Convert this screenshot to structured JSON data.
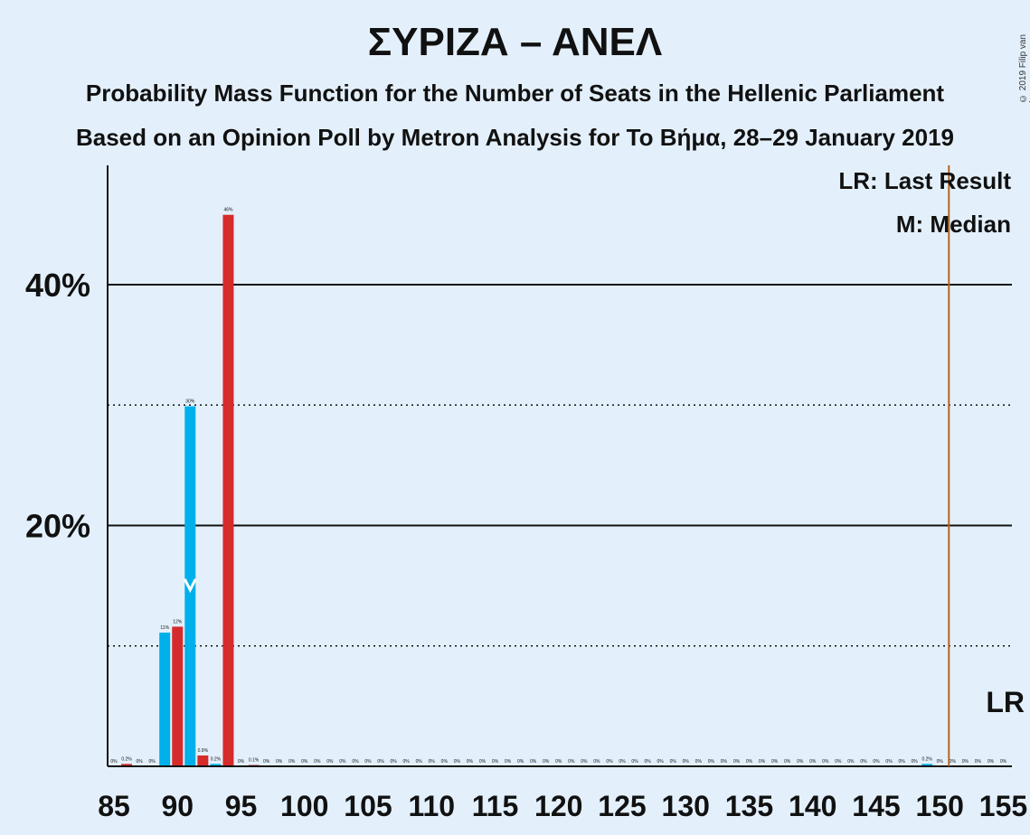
{
  "title": "ΣΥΡΙΖΑ – ΑΝΕΛ",
  "subtitle1": "Probability Mass Function for the Number of Seats in the Hellenic Parliament",
  "subtitle2": "Based on an Opinion Poll by Metron Analysis for To Βήμα, 28–29 January 2019",
  "copyright": "© 2019 Filip van Laenen",
  "legend": {
    "last_result": "LR: Last Result",
    "median": "M: Median",
    "lr_marker": "LR"
  },
  "colors": {
    "background": "#e3f0fc",
    "poll_bar": "#00b0ea",
    "last_result_bar": "#d62b2b",
    "last_result_line": "#b5651d",
    "median_marker": "#ffffff"
  },
  "chart_data": {
    "type": "bar",
    "x_label": "",
    "y_label": "",
    "x_range": [
      85,
      155
    ],
    "y_range": [
      0,
      50
    ],
    "x_ticks": [
      85,
      90,
      95,
      100,
      105,
      110,
      115,
      120,
      125,
      130,
      135,
      140,
      145,
      150,
      155
    ],
    "y_major_ticks": [
      {
        "value": 20,
        "label": "20%"
      },
      {
        "value": 40,
        "label": "40%"
      }
    ],
    "y_minor_gridlines": [
      10,
      30
    ],
    "last_result_seat": 151,
    "median_seat": 91,
    "series": [
      {
        "name": "poll",
        "bars": [
          {
            "seat": 85,
            "value": 0,
            "label": "0%"
          },
          {
            "seat": 87,
            "value": 0,
            "label": "0%"
          },
          {
            "seat": 89,
            "value": 11.1,
            "label": "11%"
          },
          {
            "seat": 91,
            "value": 29.9,
            "label": "30%"
          },
          {
            "seat": 93,
            "value": 0.2,
            "label": "0.2%"
          },
          {
            "seat": 95,
            "value": 0,
            "label": "0%"
          },
          {
            "seat": 97,
            "value": 0,
            "label": "0%"
          },
          {
            "seat": 99,
            "value": 0,
            "label": "0%"
          },
          {
            "seat": 101,
            "value": 0,
            "label": "0%"
          },
          {
            "seat": 103,
            "value": 0,
            "label": "0%"
          },
          {
            "seat": 105,
            "value": 0,
            "label": "0%"
          },
          {
            "seat": 107,
            "value": 0,
            "label": "0%"
          },
          {
            "seat": 109,
            "value": 0,
            "label": "0%"
          },
          {
            "seat": 111,
            "value": 0,
            "label": "0%"
          },
          {
            "seat": 113,
            "value": 0,
            "label": "0%"
          },
          {
            "seat": 115,
            "value": 0,
            "label": "0%"
          },
          {
            "seat": 117,
            "value": 0,
            "label": "0%"
          },
          {
            "seat": 119,
            "value": 0,
            "label": "0%"
          },
          {
            "seat": 121,
            "value": 0,
            "label": "0%"
          },
          {
            "seat": 123,
            "value": 0,
            "label": "0%"
          },
          {
            "seat": 125,
            "value": 0,
            "label": "0%"
          },
          {
            "seat": 127,
            "value": 0,
            "label": "0%"
          },
          {
            "seat": 129,
            "value": 0,
            "label": "0%"
          },
          {
            "seat": 131,
            "value": 0,
            "label": "0%"
          },
          {
            "seat": 133,
            "value": 0,
            "label": "0%"
          },
          {
            "seat": 135,
            "value": 0,
            "label": "0%"
          },
          {
            "seat": 137,
            "value": 0,
            "label": "0%"
          },
          {
            "seat": 139,
            "value": 0,
            "label": "0%"
          },
          {
            "seat": 141,
            "value": 0,
            "label": "0%"
          },
          {
            "seat": 143,
            "value": 0,
            "label": "0%"
          },
          {
            "seat": 145,
            "value": 0,
            "label": "0%"
          },
          {
            "seat": 147,
            "value": 0,
            "label": "0%"
          },
          {
            "seat": 149,
            "value": 0.2,
            "label": "0.2%"
          },
          {
            "seat": 151,
            "value": 0,
            "label": "0%"
          },
          {
            "seat": 153,
            "value": 0,
            "label": "0%"
          },
          {
            "seat": 155,
            "value": 0,
            "label": "0%"
          }
        ]
      },
      {
        "name": "last result",
        "bars": [
          {
            "seat": 86,
            "value": 0.2,
            "label": "0.2%"
          },
          {
            "seat": 88,
            "value": 0,
            "label": "0%"
          },
          {
            "seat": 90,
            "value": 11.6,
            "label": "12%"
          },
          {
            "seat": 92,
            "value": 0.9,
            "label": "0.9%"
          },
          {
            "seat": 94,
            "value": 45.8,
            "label": "46%"
          },
          {
            "seat": 96,
            "value": 0.1,
            "label": "0.1%"
          },
          {
            "seat": 98,
            "value": 0,
            "label": "0%"
          },
          {
            "seat": 100,
            "value": 0,
            "label": "0%"
          },
          {
            "seat": 102,
            "value": 0,
            "label": "0%"
          },
          {
            "seat": 104,
            "value": 0,
            "label": "0%"
          },
          {
            "seat": 106,
            "value": 0,
            "label": "0%"
          },
          {
            "seat": 108,
            "value": 0,
            "label": "0%"
          },
          {
            "seat": 110,
            "value": 0,
            "label": "0%"
          },
          {
            "seat": 112,
            "value": 0,
            "label": "0%"
          },
          {
            "seat": 114,
            "value": 0,
            "label": "0%"
          },
          {
            "seat": 116,
            "value": 0,
            "label": "0%"
          },
          {
            "seat": 118,
            "value": 0,
            "label": "0%"
          },
          {
            "seat": 120,
            "value": 0,
            "label": "0%"
          },
          {
            "seat": 122,
            "value": 0,
            "label": "0%"
          },
          {
            "seat": 124,
            "value": 0,
            "label": "0%"
          },
          {
            "seat": 126,
            "value": 0,
            "label": "0%"
          },
          {
            "seat": 128,
            "value": 0,
            "label": "0%"
          },
          {
            "seat": 130,
            "value": 0,
            "label": "0%"
          },
          {
            "seat": 132,
            "value": 0,
            "label": "0%"
          },
          {
            "seat": 134,
            "value": 0,
            "label": "0%"
          },
          {
            "seat": 136,
            "value": 0,
            "label": "0%"
          },
          {
            "seat": 138,
            "value": 0,
            "label": "0%"
          },
          {
            "seat": 140,
            "value": 0,
            "label": "0%"
          },
          {
            "seat": 142,
            "value": 0,
            "label": "0%"
          },
          {
            "seat": 144,
            "value": 0,
            "label": "0%"
          },
          {
            "seat": 146,
            "value": 0,
            "label": "0%"
          },
          {
            "seat": 148,
            "value": 0,
            "label": "0%"
          },
          {
            "seat": 150,
            "value": 0,
            "label": "0%"
          },
          {
            "seat": 152,
            "value": 0,
            "label": "0%"
          },
          {
            "seat": 154,
            "value": 0,
            "label": "0%"
          }
        ]
      }
    ]
  }
}
